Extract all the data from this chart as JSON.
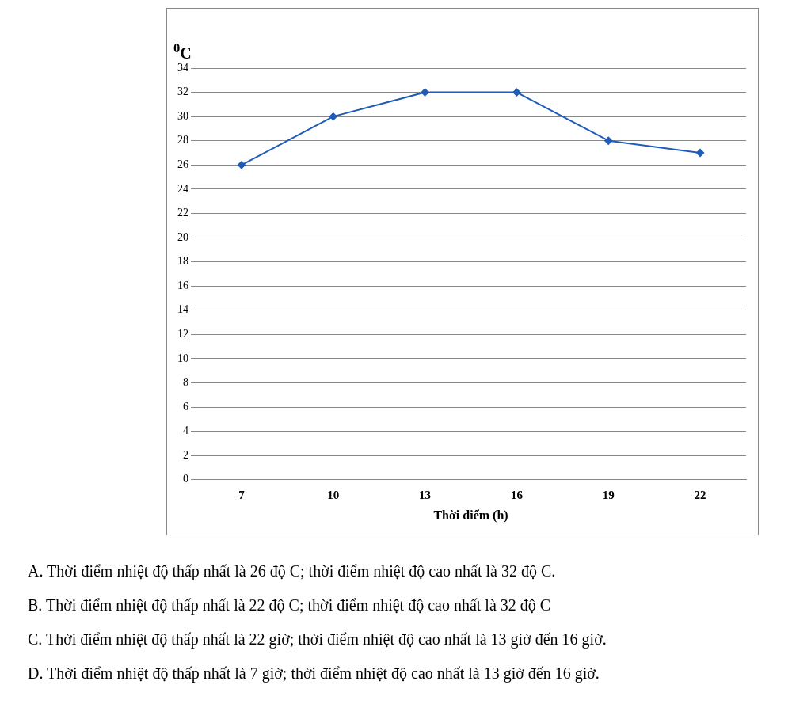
{
  "chart_data": {
    "type": "line",
    "ylabel": "$^{0}$C",
    "xlabel": "Thời điểm (h)",
    "categories": [
      "7",
      "10",
      "13",
      "16",
      "19",
      "22"
    ],
    "series": [
      {
        "color": "#1f5cb8",
        "values": [
          26,
          30,
          32,
          32,
          28,
          27
        ]
      }
    ],
    "ylim": [
      0,
      34
    ],
    "yticks": [
      0,
      2,
      4,
      6,
      8,
      10,
      12,
      14,
      16,
      18,
      20,
      22,
      24,
      26,
      28,
      30,
      32,
      34
    ],
    "grid": "y",
    "legend": false,
    "marker": "diamond",
    "line_style": "solid",
    "annotations": [
      "A. Thời điểm nhiệt độ thấp nhất là 26 độ C; thời điểm nhiệt độ cao nhất là 32 độ C.",
      "B. Thời điểm nhiệt độ thấp nhất là 22 độ C; thời điểm nhiệt độ cao nhất là 32 độ C",
      "C. Thời điểm nhiệt độ thấp nhất là 22 giờ; thời điểm nhiệt độ cao nhất là 13 giờ đến 16 giờ.",
      "D. Thời điểm nhiệt độ thấp nhất là 7 giờ; thời điểm nhiệt độ cao nhất là 13 giờ đến 16 giờ."
    ]
  }
}
